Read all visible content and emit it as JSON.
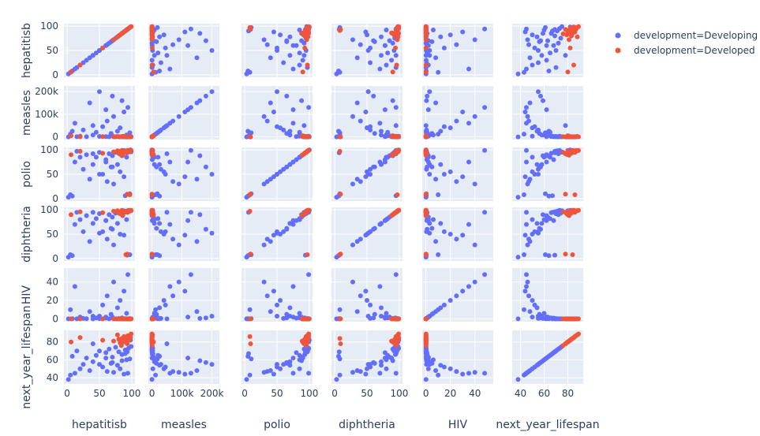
{
  "chart_data": {
    "type": "scatter",
    "variables": [
      "hepatitisb",
      "measles",
      "polio",
      "diphtheria",
      "HIV",
      "next_year_lifespan"
    ],
    "axes": {
      "hepatitisb": {
        "range": [
          -5,
          105
        ],
        "ticks": [
          0,
          50,
          100
        ],
        "tick_labels": [
          "0",
          "50",
          "100"
        ]
      },
      "measles": {
        "range": [
          -12000,
          225000
        ],
        "ticks": [
          0,
          100000,
          200000
        ],
        "tick_labels": [
          "0",
          "100k",
          "200k"
        ]
      },
      "polio": {
        "range": [
          -5,
          105
        ],
        "ticks": [
          0,
          50,
          100
        ],
        "tick_labels": [
          "0",
          "50",
          "100"
        ]
      },
      "diphtheria": {
        "range": [
          -5,
          105
        ],
        "ticks": [
          0,
          50,
          100
        ],
        "tick_labels": [
          "0",
          "50",
          "100"
        ]
      },
      "HIV": {
        "range": [
          -3,
          55
        ],
        "ticks": [
          0,
          20,
          40
        ],
        "tick_labels": [
          "0",
          "20",
          "40"
        ]
      },
      "next_year_lifespan": {
        "range": [
          33,
          93
        ],
        "ticks": [
          40,
          60,
          80
        ],
        "tick_labels": [
          "40",
          "60",
          "80"
        ]
      }
    },
    "y_axes": {
      "hepatitisb": {
        "ticks": [
          0,
          50,
          100
        ],
        "tick_labels": [
          "0",
          "50",
          "100"
        ]
      },
      "measles": {
        "ticks": [
          0,
          100000,
          200000
        ],
        "tick_labels": [
          "0",
          "100k",
          "200k"
        ]
      },
      "polio": {
        "ticks": [
          0,
          50,
          100
        ],
        "tick_labels": [
          "0",
          "50",
          "100"
        ]
      },
      "diphtheria": {
        "ticks": [
          0,
          50,
          100
        ],
        "tick_labels": [
          "0",
          "50",
          "100"
        ]
      },
      "HIV": {
        "ticks": [
          0,
          20,
          40
        ],
        "tick_labels": [
          "0",
          "20",
          "40"
        ]
      },
      "next_year_lifespan": {
        "ticks": [
          40,
          60,
          80
        ],
        "tick_labels": [
          "40",
          "60",
          "80"
        ]
      }
    },
    "legend": {
      "placement": "top-right",
      "entries": [
        {
          "name": "development=Developing",
          "color": "#636efa"
        },
        {
          "name": "development=Developed",
          "color": "#ef553b"
        }
      ]
    },
    "grid": true,
    "series": [
      {
        "name": "development=Developing",
        "color": "#636efa",
        "records": [
          [
            2,
            0,
            3,
            3,
            0.1,
            38
          ],
          [
            5,
            12000,
            8,
            8,
            10,
            43
          ],
          [
            12,
            60000,
            75,
            70,
            35,
            45
          ],
          [
            20,
            3000,
            85,
            80,
            2,
            50
          ],
          [
            25,
            30000,
            60,
            55,
            0.5,
            55
          ],
          [
            30,
            500,
            90,
            88,
            0.2,
            62
          ],
          [
            35,
            150000,
            40,
            35,
            8,
            48
          ],
          [
            40,
            8000,
            70,
            72,
            3,
            58
          ],
          [
            45,
            20000,
            85,
            82,
            1,
            65
          ],
          [
            50,
            2000,
            95,
            92,
            0.3,
            70
          ],
          [
            55,
            45000,
            50,
            55,
            15,
            52
          ],
          [
            60,
            1000,
            80,
            78,
            0.8,
            68
          ],
          [
            62,
            70000,
            35,
            40,
            25,
            47
          ],
          [
            65,
            200,
            92,
            90,
            0.1,
            72
          ],
          [
            68,
            15000,
            65,
            62,
            5,
            56
          ],
          [
            70,
            5000,
            88,
            85,
            2,
            63
          ],
          [
            72,
            90000,
            30,
            28,
            40,
            46
          ],
          [
            75,
            300,
            95,
            93,
            0.1,
            74
          ],
          [
            78,
            25000,
            70,
            72,
            12,
            54
          ],
          [
            80,
            600,
            97,
            96,
            0.4,
            69
          ],
          [
            82,
            40000,
            55,
            50,
            20,
            50
          ],
          [
            85,
            1500,
            93,
            94,
            1,
            66
          ],
          [
            88,
            110000,
            45,
            48,
            30,
            44
          ],
          [
            90,
            400,
            98,
            97,
            0.2,
            71
          ],
          [
            92,
            8000,
            85,
            80,
            6,
            60
          ],
          [
            94,
            130000,
            99,
            95,
            48,
            45
          ],
          [
            95,
            2500,
            99,
            99,
            0.1,
            73
          ],
          [
            97,
            18000,
            10,
            8,
            0.3,
            61
          ],
          [
            99,
            700,
            96,
            98,
            0.1,
            75
          ],
          [
            8,
            25000,
            5,
            6,
            0.2,
            64
          ],
          [
            15,
            400,
            97,
            95,
            0.1,
            70
          ],
          [
            90,
            3000,
            6,
            95,
            0.1,
            67
          ],
          [
            93,
            1200,
            94,
            7,
            0.1,
            69
          ],
          [
            50,
            200000,
            50,
            52,
            3,
            55
          ],
          [
            70,
            180000,
            65,
            60,
            1,
            57
          ],
          [
            85,
            160000,
            88,
            90,
            0.5,
            59
          ],
          [
            60,
            120000,
            75,
            78,
            2,
            62
          ],
          [
            40,
            50000,
            92,
            95,
            0.1,
            78
          ],
          [
            87,
            500,
            99,
            98,
            0.1,
            80
          ],
          [
            98,
            100,
            100,
            99,
            0.1,
            82
          ]
        ]
      },
      {
        "name": "development=Developed",
        "color": "#ef553b",
        "records": [
          [
            6,
            5000,
            90,
            90,
            0.1,
            80
          ],
          [
            20,
            200,
            97,
            96,
            0.1,
            85
          ],
          [
            55,
            1000,
            93,
            94,
            0.1,
            82
          ],
          [
            72,
            100,
            96,
            97,
            0.1,
            81
          ],
          [
            78,
            2000,
            98,
            98,
            0.1,
            88
          ],
          [
            82,
            300,
            91,
            92,
            0.1,
            79
          ],
          [
            85,
            50,
            99,
            99,
            0.1,
            84
          ],
          [
            88,
            800,
            95,
            95,
            0.1,
            86
          ],
          [
            90,
            10,
            97,
            96,
            0.1,
            80
          ],
          [
            92,
            0,
            94,
            95,
            0.1,
            83
          ],
          [
            94,
            150,
            99,
            98,
            0.1,
            87
          ],
          [
            96,
            5,
            96,
            97,
            0.1,
            82
          ],
          [
            98,
            0,
            98,
            99,
            0.1,
            85
          ],
          [
            99,
            60,
            99,
            99,
            0.1,
            89
          ],
          [
            93,
            0,
            9,
            9,
            0.1,
            78
          ],
          [
            86,
            2500,
            89,
            88,
            0.1,
            81
          ],
          [
            80,
            400,
            93,
            93,
            0.1,
            83
          ],
          [
            97,
            0,
            8,
            97,
            0.1,
            86
          ],
          [
            91,
            30,
            97,
            8,
            0.1,
            84
          ],
          [
            84,
            700,
            95,
            96,
            0.1,
            76
          ]
        ]
      }
    ]
  }
}
